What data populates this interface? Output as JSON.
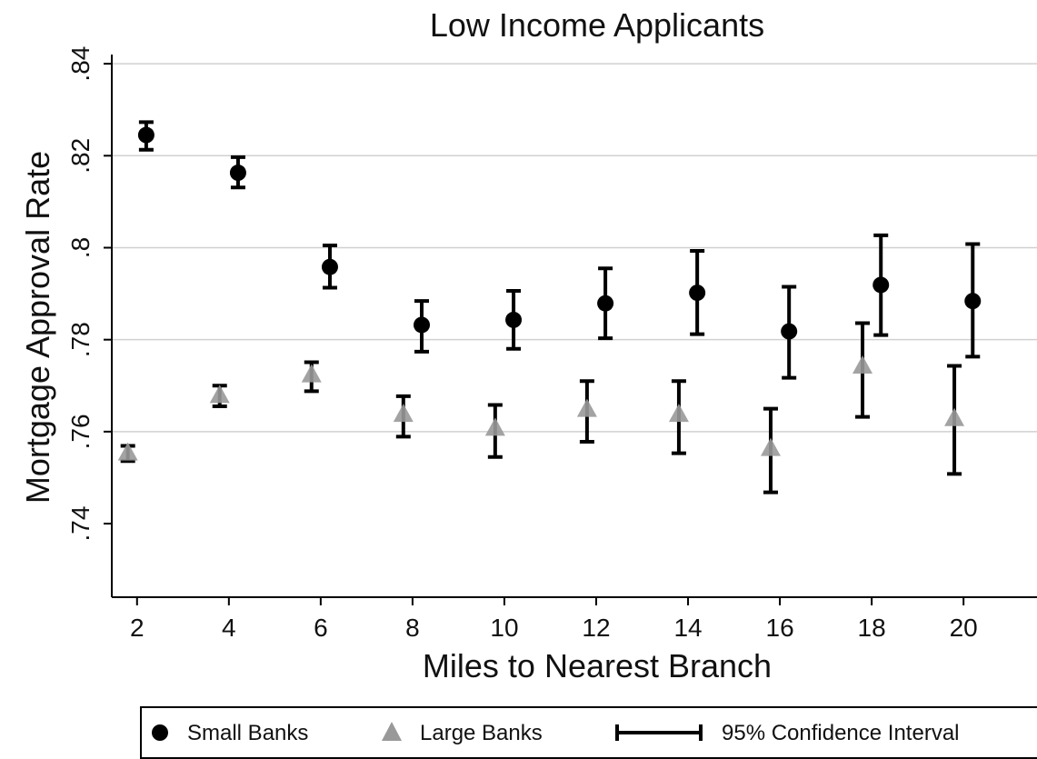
{
  "chart_data": {
    "type": "scatter",
    "title": "Low Income Applicants",
    "xlabel": "Miles to Nearest Branch",
    "ylabel": "Mortgage Approval Rate",
    "xlim": [
      1.45,
      21.6
    ],
    "ylim": [
      0.724,
      0.842
    ],
    "xticks": [
      2,
      4,
      6,
      8,
      10,
      12,
      14,
      16,
      18,
      20
    ],
    "xtick_labels": [
      "2",
      "4",
      "6",
      "8",
      "10",
      "12",
      "14",
      "16",
      "18",
      "20"
    ],
    "yticks": [
      0.74,
      0.76,
      0.78,
      0.8,
      0.82,
      0.84
    ],
    "ytick_labels": [
      ".74",
      ".76",
      ".78",
      ".8",
      ".82",
      ".84"
    ],
    "grid": "horizontal",
    "legend_position": "bottom",
    "series": [
      {
        "name": "Small Banks",
        "marker": "circle",
        "color": "#000000",
        "x": [
          2.2,
          4.2,
          6.2,
          8.2,
          10.2,
          12.2,
          14.2,
          16.2,
          18.2,
          20.2
        ],
        "y": [
          0.8245,
          0.8163,
          0.7958,
          0.7832,
          0.7843,
          0.7879,
          0.7902,
          0.7818,
          0.7919,
          0.7884
        ],
        "ci_low": [
          0.8213,
          0.8131,
          0.7913,
          0.7774,
          0.778,
          0.7803,
          0.7812,
          0.7717,
          0.781,
          0.7763
        ],
        "ci_high": [
          0.8273,
          0.8197,
          0.8005,
          0.7884,
          0.7906,
          0.7955,
          0.7993,
          0.7915,
          0.8027,
          0.8008
        ]
      },
      {
        "name": "Large Banks",
        "marker": "triangle",
        "color": "#999999",
        "x": [
          1.8,
          3.8,
          5.8,
          7.8,
          9.8,
          11.8,
          13.8,
          15.8,
          17.8,
          19.8
        ],
        "y": [
          0.7553,
          0.7678,
          0.7723,
          0.7637,
          0.7607,
          0.7648,
          0.7637,
          0.7563,
          0.7742,
          0.7628
        ],
        "ci_low": [
          0.7536,
          0.7655,
          0.7688,
          0.7589,
          0.7545,
          0.7578,
          0.7553,
          0.7468,
          0.7632,
          0.7508
        ],
        "ci_high": [
          0.7569,
          0.77,
          0.7751,
          0.7677,
          0.7658,
          0.771,
          0.771,
          0.765,
          0.7836,
          0.7743
        ]
      }
    ],
    "legend": [
      {
        "label": "Small Banks",
        "symbol": "circle"
      },
      {
        "label": "Large Banks",
        "symbol": "triangle"
      },
      {
        "label": "95% Confidence Interval",
        "symbol": "capped-bar"
      }
    ]
  }
}
